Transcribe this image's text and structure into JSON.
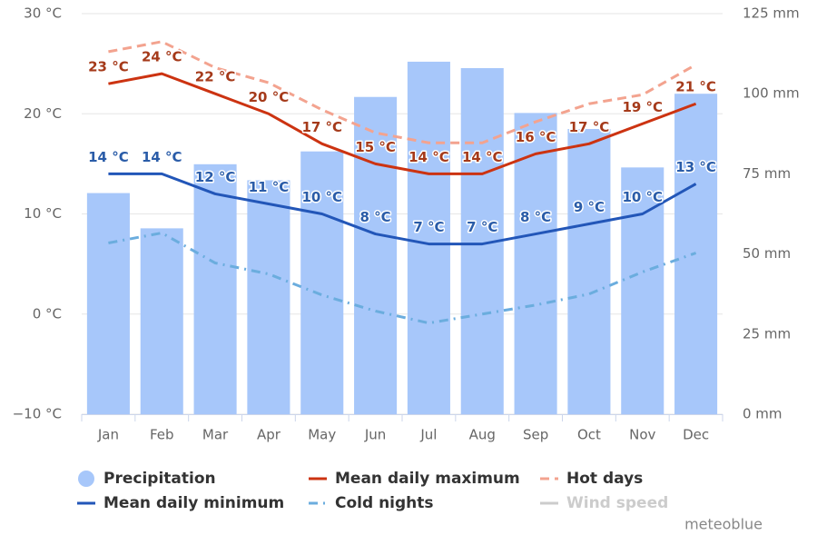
{
  "chart_data": {
    "type": "combo",
    "categories": [
      "Jan",
      "Feb",
      "Mar",
      "Apr",
      "May",
      "Jun",
      "Jul",
      "Aug",
      "Sep",
      "Oct",
      "Nov",
      "Dec"
    ],
    "ylim": [
      -10,
      30
    ],
    "yticks": [
      {
        "value": -10,
        "label": "−10 °C"
      },
      {
        "value": 0,
        "label": "0 °C"
      },
      {
        "value": 10,
        "label": "10 °C"
      },
      {
        "value": 20,
        "label": "20 °C"
      },
      {
        "value": 30,
        "label": "30 °C"
      }
    ],
    "y2lim": [
      0,
      125
    ],
    "y2ticks": [
      {
        "value": 0,
        "label": "0 mm"
      },
      {
        "value": 25,
        "label": "25 mm"
      },
      {
        "value": 50,
        "label": "50 mm"
      },
      {
        "value": 75,
        "label": "75 mm"
      },
      {
        "value": 100,
        "label": "100 mm"
      },
      {
        "value": 125,
        "label": "125 mm"
      }
    ],
    "grid": true,
    "series": [
      {
        "name": "Precipitation",
        "type": "bar",
        "axis": "y2",
        "color": "#a7c7fa",
        "values": [
          69,
          58,
          78,
          73,
          82,
          99,
          110,
          108,
          94,
          89,
          77,
          100
        ]
      },
      {
        "name": "Mean daily maximum",
        "type": "line",
        "color": "#cc3311",
        "dash": "solid",
        "values": [
          23,
          24,
          22,
          20,
          17,
          15,
          14,
          14,
          16,
          17,
          19,
          21
        ],
        "value_labels": [
          "23 °C",
          "24 °C",
          "22 °C",
          "20 °C",
          "17 °C",
          "15 °C",
          "14 °C",
          "14 °C",
          "16 °C",
          "17 °C",
          "19 °C",
          "21 °C"
        ],
        "label_color": "#a53a1a"
      },
      {
        "name": "Hot days",
        "type": "line",
        "color": "#f3a38f",
        "dash": "dash",
        "values": [
          26.2,
          27.2,
          24.6,
          23.1,
          20.4,
          18.1,
          17.1,
          17.1,
          19.2,
          21,
          21.9,
          24.9
        ]
      },
      {
        "name": "Mean daily minimum",
        "type": "line",
        "color": "#2256b8",
        "dash": "solid",
        "values": [
          14,
          14,
          12,
          11,
          10,
          8,
          7,
          7,
          8,
          9,
          10,
          13
        ],
        "value_labels": [
          "14 °C",
          "14 °C",
          "12 °C",
          "11 °C",
          "10 °C",
          "8 °C",
          "7 °C",
          "7 °C",
          "8 °C",
          "9 °C",
          "10 °C",
          "13 °C"
        ],
        "label_color": "#2a5ca8"
      },
      {
        "name": "Cold nights",
        "type": "line",
        "color": "#6badde",
        "dash": "dashdot",
        "values": [
          7.1,
          8.1,
          5.1,
          4,
          1.9,
          0.3,
          -0.9,
          0,
          0.9,
          2,
          4.2,
          6.1
        ]
      },
      {
        "name": "Wind speed",
        "type": "line",
        "color": "#cccccc",
        "visible": false
      }
    ],
    "credit": "meteoblue"
  }
}
